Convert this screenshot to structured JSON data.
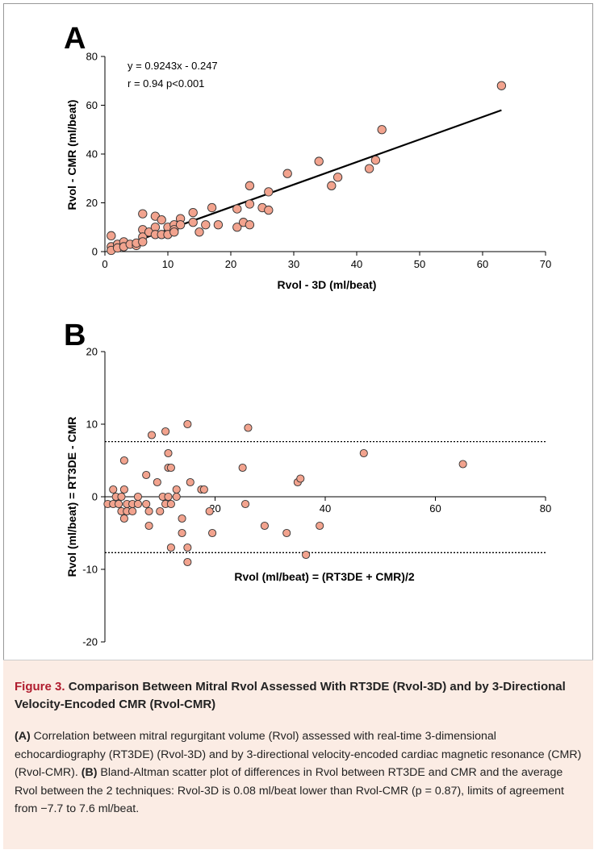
{
  "chart_data": [
    {
      "panel": "A",
      "type": "scatter",
      "xlabel": "Rvol - 3D (ml/beat)",
      "ylabel": "Rvol - CMR (ml/beat)",
      "xlim": [
        0,
        70
      ],
      "ylim": [
        0,
        80
      ],
      "xticks": [
        "0",
        "10",
        "20",
        "30",
        "40",
        "50",
        "60",
        "70"
      ],
      "yticks": [
        "0",
        "20",
        "40",
        "60",
        "80"
      ],
      "annotations": [
        "y = 0.9243x - 0.247",
        "r = 0.94 p<0.001"
      ],
      "regression": {
        "slope": 0.9243,
        "intercept": -0.247,
        "x_range": [
          1,
          63
        ]
      },
      "points": [
        [
          1,
          6.5
        ],
        [
          1,
          2
        ],
        [
          1,
          0.5
        ],
        [
          2,
          3
        ],
        [
          2,
          1.5
        ],
        [
          3,
          4
        ],
        [
          3,
          2
        ],
        [
          4,
          3
        ],
        [
          5,
          2.5
        ],
        [
          5,
          3.5
        ],
        [
          6,
          15.5
        ],
        [
          6,
          9
        ],
        [
          6,
          6
        ],
        [
          6,
          4
        ],
        [
          7,
          8
        ],
        [
          8,
          14.5
        ],
        [
          8,
          10
        ],
        [
          8,
          7
        ],
        [
          9,
          13
        ],
        [
          9,
          7
        ],
        [
          10,
          10
        ],
        [
          10,
          7
        ],
        [
          11,
          11
        ],
        [
          11,
          9
        ],
        [
          11,
          8
        ],
        [
          12,
          13.5
        ],
        [
          12,
          11
        ],
        [
          14,
          16
        ],
        [
          14,
          12
        ],
        [
          15,
          8
        ],
        [
          16,
          11
        ],
        [
          17,
          18
        ],
        [
          18,
          11
        ],
        [
          21,
          17.5
        ],
        [
          21,
          10
        ],
        [
          22,
          12
        ],
        [
          23,
          27
        ],
        [
          23,
          19.5
        ],
        [
          23,
          11
        ],
        [
          25,
          18
        ],
        [
          26,
          24.5
        ],
        [
          26,
          17
        ],
        [
          29,
          32
        ],
        [
          34,
          37
        ],
        [
          36,
          27
        ],
        [
          37,
          30.5
        ],
        [
          42,
          34
        ],
        [
          43,
          37.5
        ],
        [
          44,
          50
        ],
        [
          63,
          68
        ]
      ],
      "marker_color": "#f2a38e",
      "marker_edge": "#333333"
    },
    {
      "panel": "B",
      "type": "scatter",
      "xlabel": "Rvol (ml/beat) = (RT3DE + CMR)/2",
      "ylabel": "Rvol (ml/beat) = RT3DE - CMR",
      "xlim": [
        0,
        80
      ],
      "ylim": [
        -20,
        20
      ],
      "xticks": [
        "20",
        "40",
        "60",
        "80"
      ],
      "yticks": [
        "20",
        "10",
        "0",
        "-10",
        "-20"
      ],
      "limits_of_agreement": [
        7.6,
        -7.7
      ],
      "points": [
        [
          0.5,
          -1
        ],
        [
          1.5,
          -1
        ],
        [
          1.5,
          1
        ],
        [
          2,
          0
        ],
        [
          2.5,
          -1
        ],
        [
          3,
          -2
        ],
        [
          3,
          0
        ],
        [
          3.5,
          -3
        ],
        [
          3.5,
          1
        ],
        [
          3.5,
          5
        ],
        [
          4,
          -1
        ],
        [
          4,
          -2
        ],
        [
          5,
          -2
        ],
        [
          5,
          -1
        ],
        [
          6,
          -1
        ],
        [
          6,
          0
        ],
        [
          7.5,
          3
        ],
        [
          7.5,
          -1
        ],
        [
          8,
          -4
        ],
        [
          8,
          -2
        ],
        [
          8.5,
          8.5
        ],
        [
          9.5,
          2
        ],
        [
          10,
          -2
        ],
        [
          10.5,
          0
        ],
        [
          11,
          -1
        ],
        [
          11,
          9
        ],
        [
          11.5,
          4
        ],
        [
          11.5,
          6
        ],
        [
          11.5,
          0
        ],
        [
          12,
          4
        ],
        [
          12,
          -7
        ],
        [
          12,
          -1
        ],
        [
          13,
          0
        ],
        [
          13,
          1
        ],
        [
          14,
          -5
        ],
        [
          14,
          -3
        ],
        [
          15,
          10
        ],
        [
          15,
          -7
        ],
        [
          15,
          -9
        ],
        [
          15.5,
          2
        ],
        [
          17.5,
          1
        ],
        [
          18,
          1
        ],
        [
          19,
          -2
        ],
        [
          19.5,
          -5
        ],
        [
          25,
          4
        ],
        [
          25.5,
          -1
        ],
        [
          26,
          9.5
        ],
        [
          29,
          -4
        ],
        [
          33,
          -5
        ],
        [
          35,
          2
        ],
        [
          35.5,
          2.5
        ],
        [
          36.5,
          -8
        ],
        [
          39,
          -4
        ],
        [
          47,
          6
        ],
        [
          65,
          4.5
        ]
      ],
      "marker_color": "#f2a38e",
      "marker_edge": "#333333"
    }
  ],
  "caption": {
    "label": "Figure 3.",
    "title": "Comparison Between Mitral Rvol Assessed With RT3DE (Rvol-3D) and by 3-Directional Velocity-Encoded CMR (Rvol-CMR)",
    "body_a_label": "(A)",
    "body_a": "Correlation between mitral regurgitant volume (Rvol) assessed with real-time 3-dimensional echocardiography (RT3DE) (Rvol-3D) and by 3-directional velocity-encoded cardiac magnetic resonance (CMR) (Rvol-CMR).",
    "body_b_label": "(B)",
    "body_b": "Bland-Altman scatter plot of differences in Rvol between RT3DE and CMR and the average Rvol between the 2 techniques: Rvol-3D is 0.08 ml/beat lower than Rvol-CMR (p = 0.87), limits of agreement from −7.7 to 7.6 ml/beat."
  }
}
